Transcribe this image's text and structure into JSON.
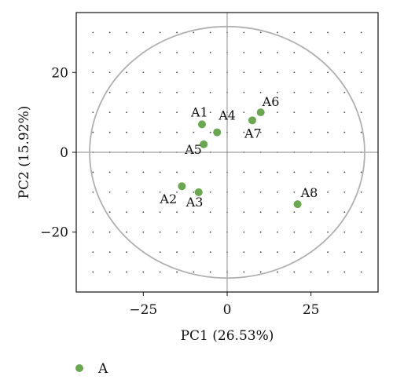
{
  "chart_data": {
    "type": "scatter",
    "title": "",
    "xlabel": "PC1 (26.53%)",
    "ylabel": "PC2 (15.92%)",
    "xlim": [
      -45,
      45
    ],
    "ylim": [
      -35,
      35
    ],
    "x_ticks": [
      -25,
      0,
      25
    ],
    "x_tick_labels": [
      "−25",
      "0",
      "25"
    ],
    "y_ticks": [
      -20,
      0,
      20
    ],
    "y_tick_labels": [
      "−20",
      "0",
      "20"
    ],
    "grid": "dotted",
    "confidence_ellipse": {
      "center": [
        0,
        0
      ],
      "radius_x": 41,
      "radius_y": 31.5
    },
    "colors": {
      "series": "#6aa84f",
      "ellipse": "#b0b0b0",
      "grid": "#444444",
      "axis": "#888888"
    },
    "series": [
      {
        "name": "A",
        "points": [
          {
            "label": "A1",
            "x": -7.5,
            "y": 7
          },
          {
            "label": "A2",
            "x": -13.5,
            "y": -8.5
          },
          {
            "label": "A3",
            "x": -8.5,
            "y": -10
          },
          {
            "label": "A4",
            "x": -3,
            "y": 5
          },
          {
            "label": "A5",
            "x": -7,
            "y": 2
          },
          {
            "label": "A6",
            "x": 10,
            "y": 10
          },
          {
            "label": "A7",
            "x": 7.5,
            "y": 8
          },
          {
            "label": "A8",
            "x": 21,
            "y": -13
          }
        ]
      }
    ],
    "legend": {
      "position": "bottom-left",
      "entries": [
        "A"
      ]
    }
  }
}
